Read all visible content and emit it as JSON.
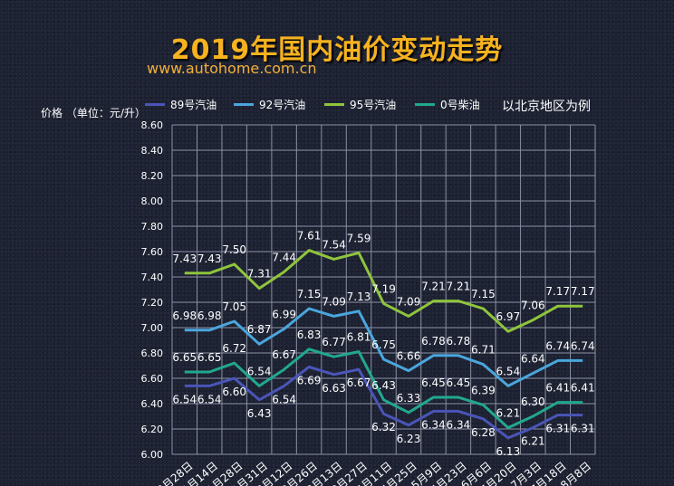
{
  "title": "2019年国内油价变动走势",
  "url": "www.autohome.com.cn",
  "note": "以北京地区为例",
  "chart_data": {
    "type": "line",
    "ylabel": "价格 （单位：元/升）",
    "ylim": [
      6.0,
      8.6
    ],
    "yticks": [
      "6.00",
      "6.20",
      "6.40",
      "6.60",
      "6.80",
      "7.00",
      "7.20",
      "7.40",
      "7.60",
      "7.80",
      "8.00",
      "8.20",
      "8.40",
      "8.60"
    ],
    "categories": [
      "12月28日",
      "1月14日",
      "1月28日",
      "1月31日",
      "2月12日",
      "2月26日",
      "3月13日",
      "3月27日",
      "4月11日",
      "4月25日",
      "5月9日",
      "5月23日",
      "6月6日",
      "6月20日",
      "7月3日",
      "7月18日",
      "8月8日"
    ],
    "series": [
      {
        "name": "89号汽油",
        "color": "#4a55b8",
        "values": [
          6.54,
          6.54,
          6.6,
          6.43,
          6.54,
          6.69,
          6.63,
          6.67,
          6.32,
          6.23,
          6.34,
          6.34,
          6.28,
          6.13,
          6.21,
          6.31,
          6.31
        ]
      },
      {
        "name": "92号汽油",
        "color": "#4aa6dc",
        "values": [
          6.98,
          6.98,
          7.05,
          6.87,
          6.99,
          7.15,
          7.09,
          7.13,
          6.75,
          6.66,
          6.78,
          6.78,
          6.71,
          6.54,
          6.64,
          6.74,
          6.74
        ]
      },
      {
        "name": "95号汽油",
        "color": "#8fc53c",
        "values": [
          7.43,
          7.43,
          7.5,
          7.31,
          7.44,
          7.61,
          7.54,
          7.59,
          7.19,
          7.09,
          7.21,
          7.21,
          7.15,
          6.97,
          7.06,
          7.17,
          7.17
        ]
      },
      {
        "name": "0号柴油",
        "color": "#21a88f",
        "values": [
          6.65,
          6.65,
          6.72,
          6.54,
          6.67,
          6.83,
          6.77,
          6.81,
          6.43,
          6.33,
          6.45,
          6.45,
          6.39,
          6.21,
          6.3,
          6.41,
          6.41
        ]
      }
    ]
  }
}
